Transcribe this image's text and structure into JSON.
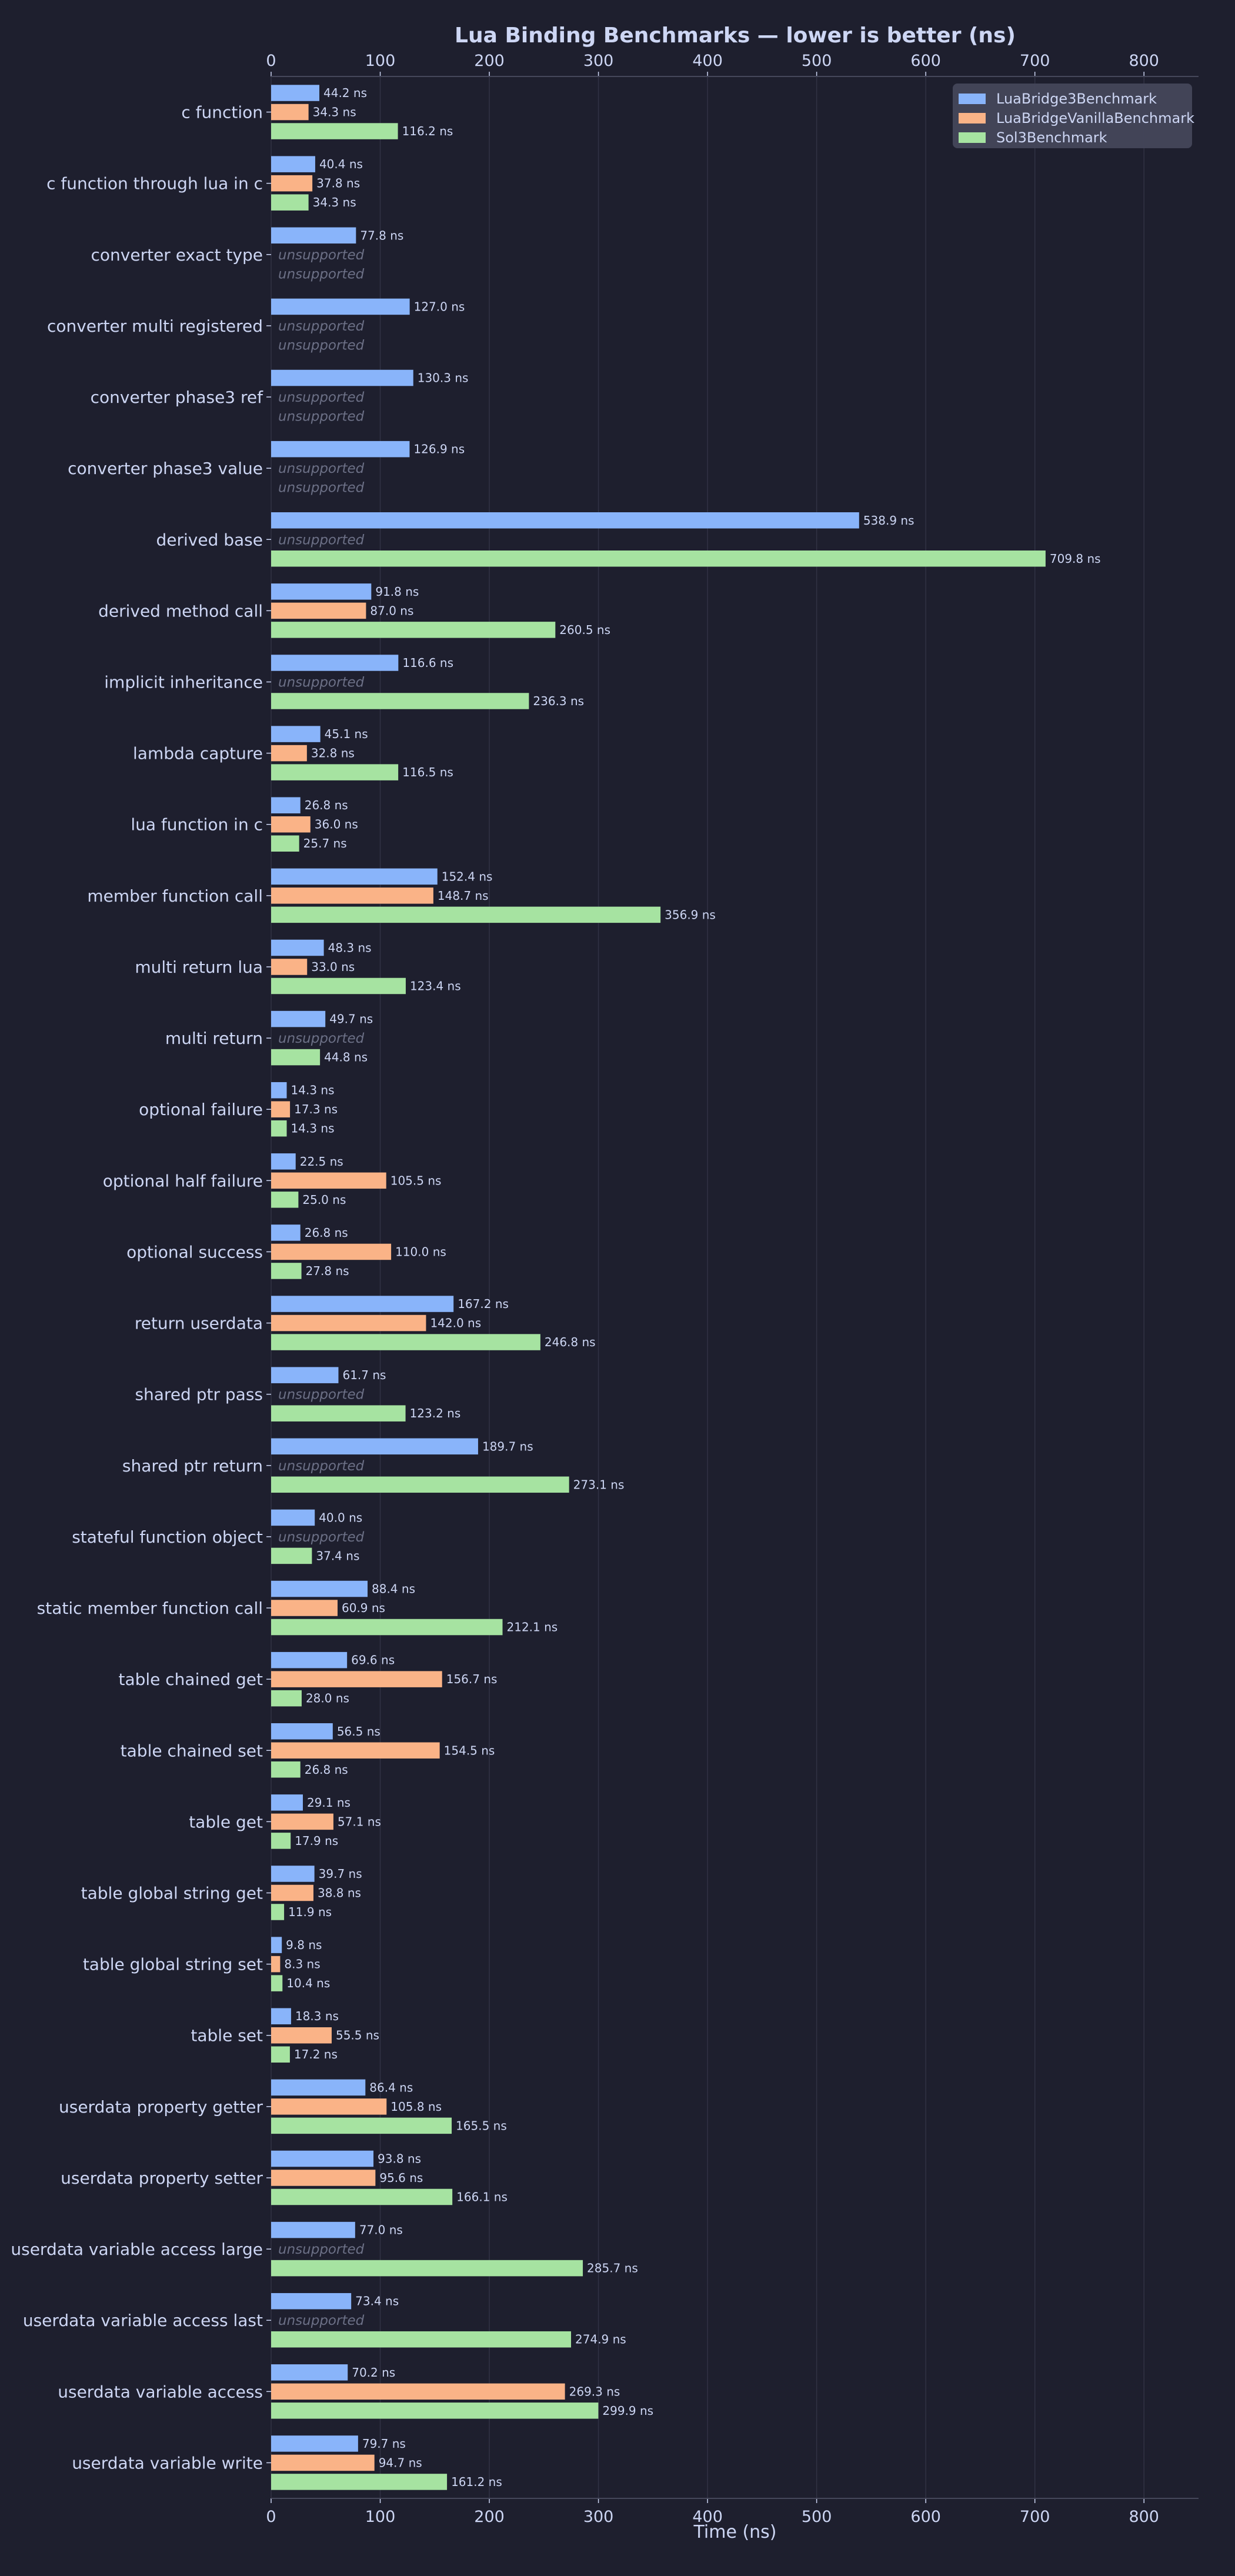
{
  "colors": {
    "background": "#1e1f2e",
    "text": "#cdd6f4",
    "grid": "#313244",
    "axis": "#45475a",
    "unsupported": "#6c7086",
    "legend_bg": "#45475a",
    "series": [
      "#89b4fa",
      "#fab387",
      "#a6e3a1"
    ]
  },
  "chart_data": {
    "type": "bar",
    "orientation": "horizontal",
    "title": "Lua Binding Benchmarks — lower is better (ns)",
    "xlabel": "Time (ns)",
    "ylabel": "",
    "xlim": [
      0,
      850
    ],
    "xticks": [
      0,
      100,
      200,
      300,
      400,
      500,
      600,
      700,
      800
    ],
    "xaxis_top_and_bottom": true,
    "grid": "vertical",
    "legend_position": "top-right",
    "value_suffix": " ns",
    "unsupported_label": "unsupported",
    "categories": [
      "c function",
      "c function through lua in c",
      "converter exact type",
      "converter multi registered",
      "converter phase3 ref",
      "converter phase3 value",
      "derived base",
      "derived method call",
      "implicit inheritance",
      "lambda capture",
      "lua function in c",
      "member function call",
      "multi return lua",
      "multi return",
      "optional failure",
      "optional half failure",
      "optional success",
      "return userdata",
      "shared ptr pass",
      "shared ptr return",
      "stateful function object",
      "static member function call",
      "table chained get",
      "table chained set",
      "table get",
      "table global string get",
      "table global string set",
      "table set",
      "userdata property getter",
      "userdata property setter",
      "userdata variable access large",
      "userdata variable access last",
      "userdata variable access",
      "userdata variable write"
    ],
    "series": [
      {
        "name": "LuaBridge3Benchmark",
        "values": [
          44.2,
          40.4,
          77.8,
          127.0,
          130.3,
          126.9,
          538.9,
          91.8,
          116.6,
          45.1,
          26.8,
          152.4,
          48.3,
          49.7,
          14.3,
          22.5,
          26.8,
          167.2,
          61.7,
          189.7,
          40.0,
          88.4,
          69.6,
          56.5,
          29.1,
          39.7,
          9.8,
          18.3,
          86.4,
          93.8,
          77.0,
          73.4,
          70.2,
          79.7
        ]
      },
      {
        "name": "LuaBridgeVanillaBenchmark",
        "values": [
          34.3,
          37.8,
          null,
          null,
          null,
          null,
          null,
          87.0,
          null,
          32.8,
          36.0,
          148.7,
          33.0,
          null,
          17.3,
          105.5,
          110.0,
          142.0,
          null,
          null,
          null,
          60.9,
          156.7,
          154.5,
          57.1,
          38.8,
          8.3,
          55.5,
          105.8,
          95.6,
          null,
          null,
          269.3,
          94.7
        ]
      },
      {
        "name": "Sol3Benchmark",
        "values": [
          116.2,
          34.3,
          null,
          null,
          null,
          null,
          709.8,
          260.5,
          236.3,
          116.5,
          25.7,
          356.9,
          123.4,
          44.8,
          14.3,
          25.0,
          27.8,
          246.8,
          123.2,
          273.1,
          37.4,
          212.1,
          28.0,
          26.8,
          17.9,
          11.9,
          10.4,
          17.2,
          165.5,
          166.1,
          285.7,
          274.9,
          299.9,
          161.2
        ]
      }
    ]
  }
}
